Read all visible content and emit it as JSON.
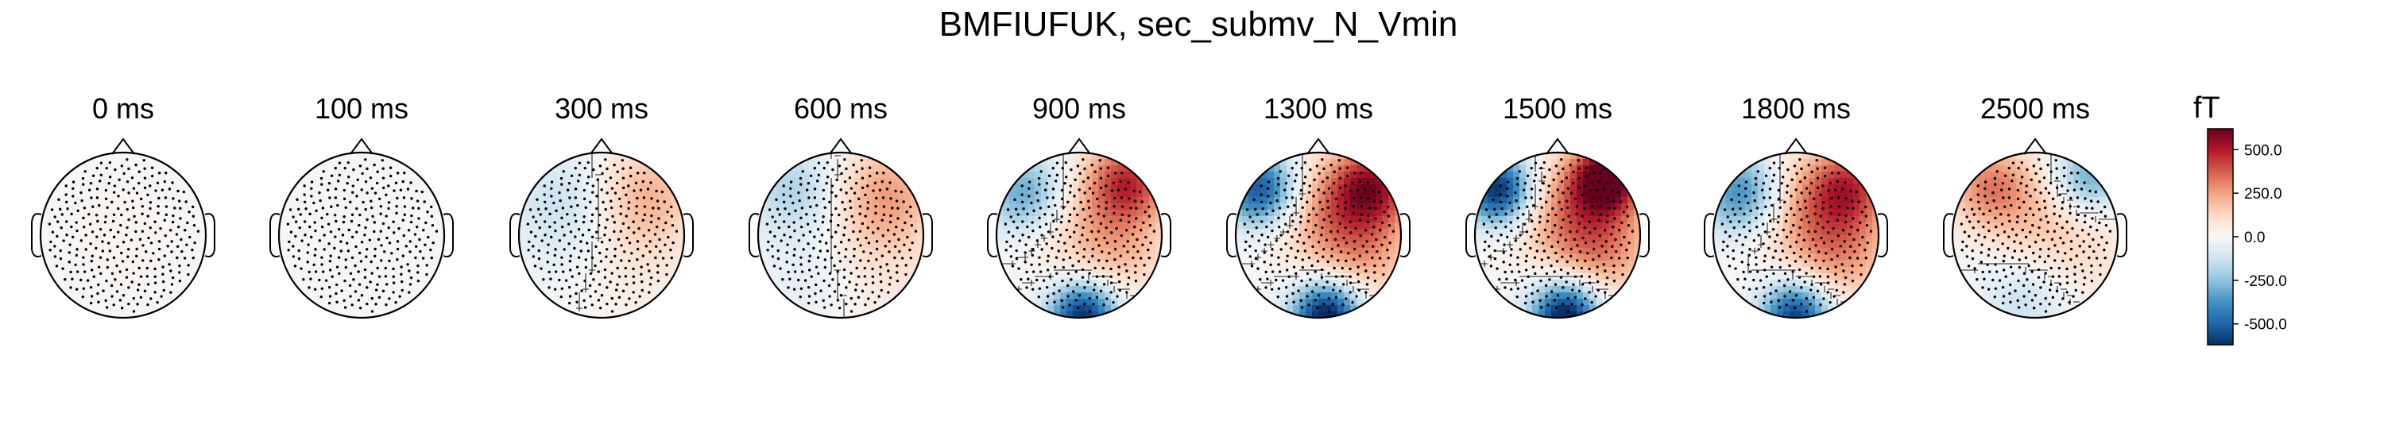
{
  "figure": {
    "title": "BMFIUFUK, sec_submv_N_Vmin"
  },
  "chart_data": {
    "type": "heatmap",
    "subtype": "topographic-map-series",
    "title": "BMFIUFUK, sec_submv_N_Vmin",
    "times": [
      "0 ms",
      "100 ms",
      "300 ms",
      "600 ms",
      "900 ms",
      "1300 ms",
      "1500 ms",
      "1800 ms",
      "2500 ms"
    ],
    "colorbar": {
      "unit": "fT",
      "ticks": [
        500.0,
        250.0,
        0.0,
        -250.0,
        -500.0
      ],
      "tick_labels": [
        "500.0",
        "250.0",
        "0.0",
        "-250.0",
        "-500.0"
      ],
      "range": [
        -620,
        620
      ],
      "colormap": "RdBu_r"
    },
    "colormap_stops": [
      "#053061",
      "#2166ac",
      "#4393c3",
      "#92c5de",
      "#d1e5f0",
      "#f7f7f7",
      "#fddbc7",
      "#f4a582",
      "#d6604d",
      "#b2182b",
      "#67001f"
    ],
    "sensor_color": "#000000",
    "maps": [
      {
        "time": "0 ms",
        "poles": [
          [
            0.0,
            0.0,
            15,
            0.6
          ]
        ]
      },
      {
        "time": "100 ms",
        "poles": [
          [
            0.0,
            0.0,
            10,
            0.6
          ]
        ]
      },
      {
        "time": "300 ms",
        "poles": [
          [
            0.55,
            0.5,
            190,
            0.45
          ],
          [
            -0.45,
            0.4,
            -150,
            0.45
          ],
          [
            0.2,
            -0.2,
            90,
            0.6
          ],
          [
            -0.3,
            -0.3,
            -60,
            0.5
          ]
        ]
      },
      {
        "time": "600 ms",
        "poles": [
          [
            0.55,
            0.5,
            230,
            0.45
          ],
          [
            -0.55,
            0.55,
            -200,
            0.4
          ],
          [
            0.35,
            -0.3,
            100,
            0.6
          ],
          [
            -0.3,
            -0.5,
            -90,
            0.5
          ]
        ]
      },
      {
        "time": "900 ms",
        "poles": [
          [
            0.6,
            0.65,
            420,
            0.35
          ],
          [
            -0.65,
            0.5,
            -350,
            0.35
          ],
          [
            0.05,
            -0.98,
            -640,
            0.3
          ],
          [
            0.0,
            0.2,
            130,
            0.5
          ],
          [
            0.5,
            -0.2,
            160,
            0.45
          ]
        ]
      },
      {
        "time": "1300 ms",
        "poles": [
          [
            0.65,
            0.6,
            480,
            0.35
          ],
          [
            -0.7,
            0.55,
            -560,
            0.32
          ],
          [
            0.1,
            -0.98,
            -700,
            0.3
          ],
          [
            0.05,
            0.3,
            220,
            0.45
          ],
          [
            0.55,
            -0.2,
            230,
            0.45
          ]
        ]
      },
      {
        "time": "1500 ms",
        "poles": [
          [
            0.6,
            0.7,
            640,
            0.3
          ],
          [
            -0.72,
            0.55,
            -640,
            0.3
          ],
          [
            0.1,
            -0.98,
            -700,
            0.3
          ],
          [
            0.1,
            0.3,
            240,
            0.45
          ],
          [
            0.55,
            -0.15,
            270,
            0.45
          ]
        ]
      },
      {
        "time": "1800 ms",
        "poles": [
          [
            0.65,
            0.6,
            380,
            0.35
          ],
          [
            -0.65,
            0.5,
            -420,
            0.35
          ],
          [
            0.0,
            -0.98,
            -600,
            0.3
          ],
          [
            0.05,
            0.35,
            210,
            0.45
          ],
          [
            0.55,
            -0.2,
            260,
            0.45
          ]
        ]
      },
      {
        "time": "2500 ms",
        "poles": [
          [
            -0.55,
            0.6,
            280,
            0.35
          ],
          [
            0.65,
            0.7,
            -330,
            0.3
          ],
          [
            0.0,
            0.2,
            130,
            0.5
          ],
          [
            0.5,
            -0.3,
            90,
            0.5
          ],
          [
            -0.1,
            -0.75,
            -170,
            0.4
          ]
        ]
      }
    ]
  }
}
